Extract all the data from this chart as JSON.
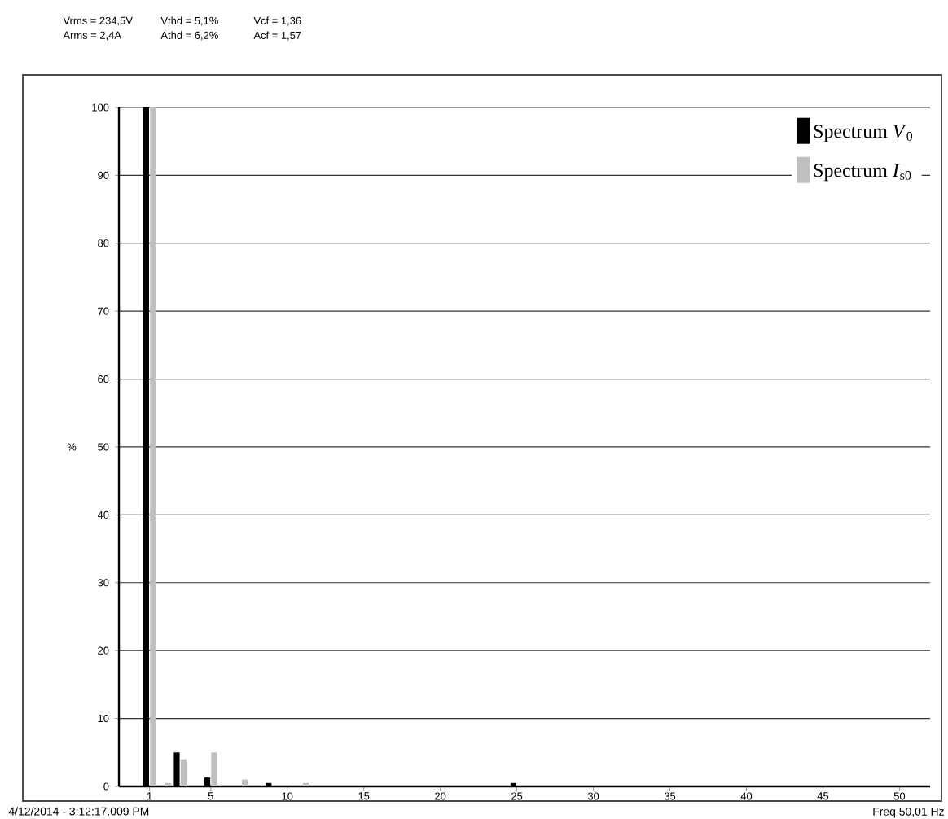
{
  "chart_data": {
    "type": "bar",
    "ylabel": "%",
    "x": [
      1,
      2,
      3,
      5,
      7,
      9,
      11,
      25
    ],
    "series": [
      {
        "name": "Spectrum *V*$_{0}$",
        "color": "#000000",
        "values": [
          100,
          0,
          5,
          1.3,
          0,
          0.5,
          0,
          0.5
        ]
      },
      {
        "name": "Spectrum *I*$_{s0}$",
        "color": "#bfbfbf",
        "values": [
          100,
          0.5,
          4,
          5,
          1,
          0,
          0.5,
          0
        ]
      }
    ],
    "xlim": [
      -1,
      52
    ],
    "ylim": [
      0,
      100
    ],
    "xticks": [
      1,
      5,
      10,
      15,
      20,
      25,
      30,
      35,
      40,
      45,
      50
    ],
    "yticks": [
      0,
      10,
      20,
      30,
      40,
      50,
      60,
      70,
      80,
      90,
      100
    ],
    "grid": "y",
    "legend": "top right",
    "annotations": [
      "Vrms = 234,5V",
      "Vthd = 5,1%",
      "Vcf = 1,36",
      "Arms = 2,4A",
      "Athd = 6,2%",
      "Acf = 1,57",
      "4/12/2014 - 3:12:17.009 PM",
      "Freq 50,01 Hz"
    ]
  }
}
